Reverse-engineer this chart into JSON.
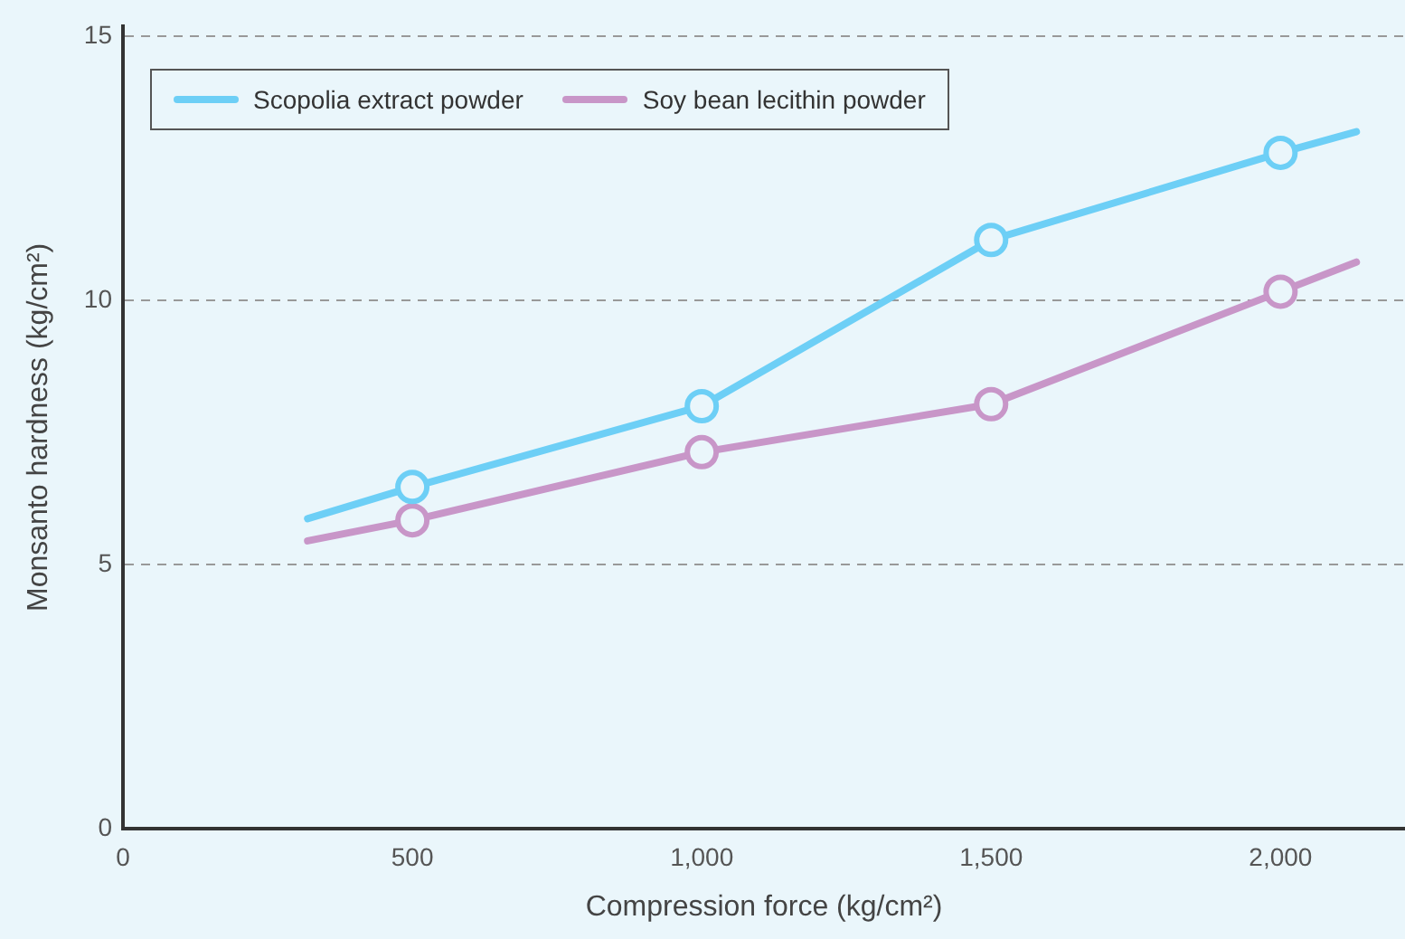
{
  "chart_data": {
    "type": "line",
    "xlabel": "Compression force (kg/cm²)",
    "ylabel": "Monsanto hardness (kg/cm²)",
    "xlim": [
      0,
      2215
    ],
    "xticks": [
      0,
      500,
      {
        "value": 1000,
        "label": "1,000"
      },
      {
        "value": 1500,
        "label": "1,500"
      },
      {
        "value": 2000,
        "label": "2,000"
      }
    ],
    "ylim": [
      0,
      15.2
    ],
    "yticks": [
      0,
      5,
      10,
      15
    ],
    "grid": "y",
    "legend": "top left",
    "marker": "circle",
    "line_style": "solid",
    "series": [
      {
        "name": "Scopolia extract powder",
        "color": "#6dcff6",
        "x": [
          319,
          500,
          1000,
          1500,
          2000,
          2131
        ],
        "values": [
          5.87,
          6.47,
          8.0,
          11.15,
          12.8,
          13.2
        ]
      },
      {
        "name": "Soy bean lecithin powder",
        "color": "#c896c8",
        "x": [
          319,
          500,
          1000,
          1500,
          2000,
          2131
        ],
        "values": [
          5.45,
          5.84,
          7.13,
          8.04,
          10.17,
          10.73
        ]
      }
    ]
  }
}
